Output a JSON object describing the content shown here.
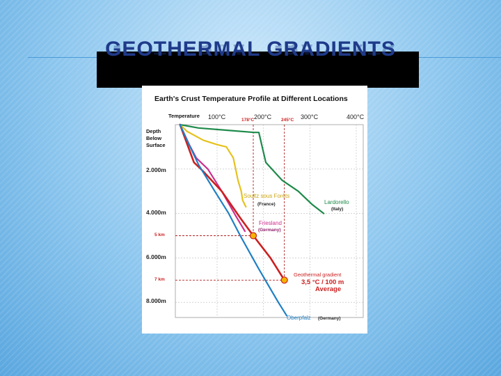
{
  "slide": {
    "title": "GEOTHERMAL GRADIENTS"
  },
  "chart_data": {
    "type": "line",
    "title": "Earth's Crust Temperature Profile at Different Locations",
    "xlabel": "Temperature",
    "ylabel": "Depth Below Surface",
    "xlim": [
      20,
      400
    ],
    "ylim": [
      0,
      9500
    ],
    "x_ticks": [
      "100°C",
      "200°C",
      "300°C",
      "400°C"
    ],
    "y_ticks": [
      "2.000m",
      "4.000m",
      "6.000m",
      "8.000m"
    ],
    "y_ticks_extra": [
      "5 km",
      "7 km"
    ],
    "ref_temps": [
      "178°C",
      "245°C"
    ],
    "grid": true,
    "series": [
      {
        "name": "Lardorello",
        "sublabel": "(Italy)",
        "color": "#1e8a4a",
        "points": [
          [
            20,
            0
          ],
          [
            60,
            150
          ],
          [
            120,
            250
          ],
          [
            180,
            350
          ],
          [
            190,
            350
          ],
          [
            205,
            1700
          ],
          [
            240,
            2500
          ],
          [
            275,
            3000
          ],
          [
            305,
            3600
          ],
          [
            330,
            4000
          ]
        ]
      },
      {
        "name": "Soultz sous Forêts",
        "sublabel": "(France)",
        "color": "#e6c21e",
        "points": [
          [
            20,
            0
          ],
          [
            35,
            300
          ],
          [
            70,
            700
          ],
          [
            100,
            900
          ],
          [
            120,
            1000
          ],
          [
            135,
            1500
          ],
          [
            145,
            2500
          ],
          [
            152,
            3000
          ],
          [
            155,
            3400
          ],
          [
            162,
            3700
          ]
        ]
      },
      {
        "name": "Friesland",
        "sublabel": "(Germany)",
        "color": "#cc2f8f",
        "points": [
          [
            20,
            0
          ],
          [
            40,
            900
          ],
          [
            55,
            1500
          ],
          [
            80,
            2000
          ],
          [
            110,
            3000
          ],
          [
            140,
            4100
          ],
          [
            160,
            4800
          ]
        ]
      },
      {
        "name": "Geothermal gradient",
        "color": "#cc1f1f",
        "points": [
          [
            20,
            0
          ],
          [
            50,
            1700
          ],
          [
            70,
            2100
          ],
          [
            110,
            3000
          ],
          [
            150,
            4200
          ],
          [
            178,
            5000
          ],
          [
            215,
            6000
          ],
          [
            245,
            7000
          ]
        ]
      },
      {
        "name": "Oberpfalz",
        "sublabel": "(Germany)",
        "color": "#1f7fc4",
        "points": [
          [
            20,
            0
          ],
          [
            35,
            700
          ],
          [
            60,
            1800
          ],
          [
            95,
            3000
          ],
          [
            125,
            4000
          ],
          [
            150,
            5000
          ],
          [
            190,
            6500
          ],
          [
            232,
            8000
          ],
          [
            250,
            8600
          ]
        ]
      }
    ],
    "markers": [
      {
        "label": "5 km",
        "temp": 178,
        "depth": 5000
      },
      {
        "label": "7 km",
        "temp": 245,
        "depth": 7000
      }
    ],
    "annotations": {
      "gradient_value": "3,5 °C / 100 m",
      "gradient_note": "Average"
    }
  }
}
